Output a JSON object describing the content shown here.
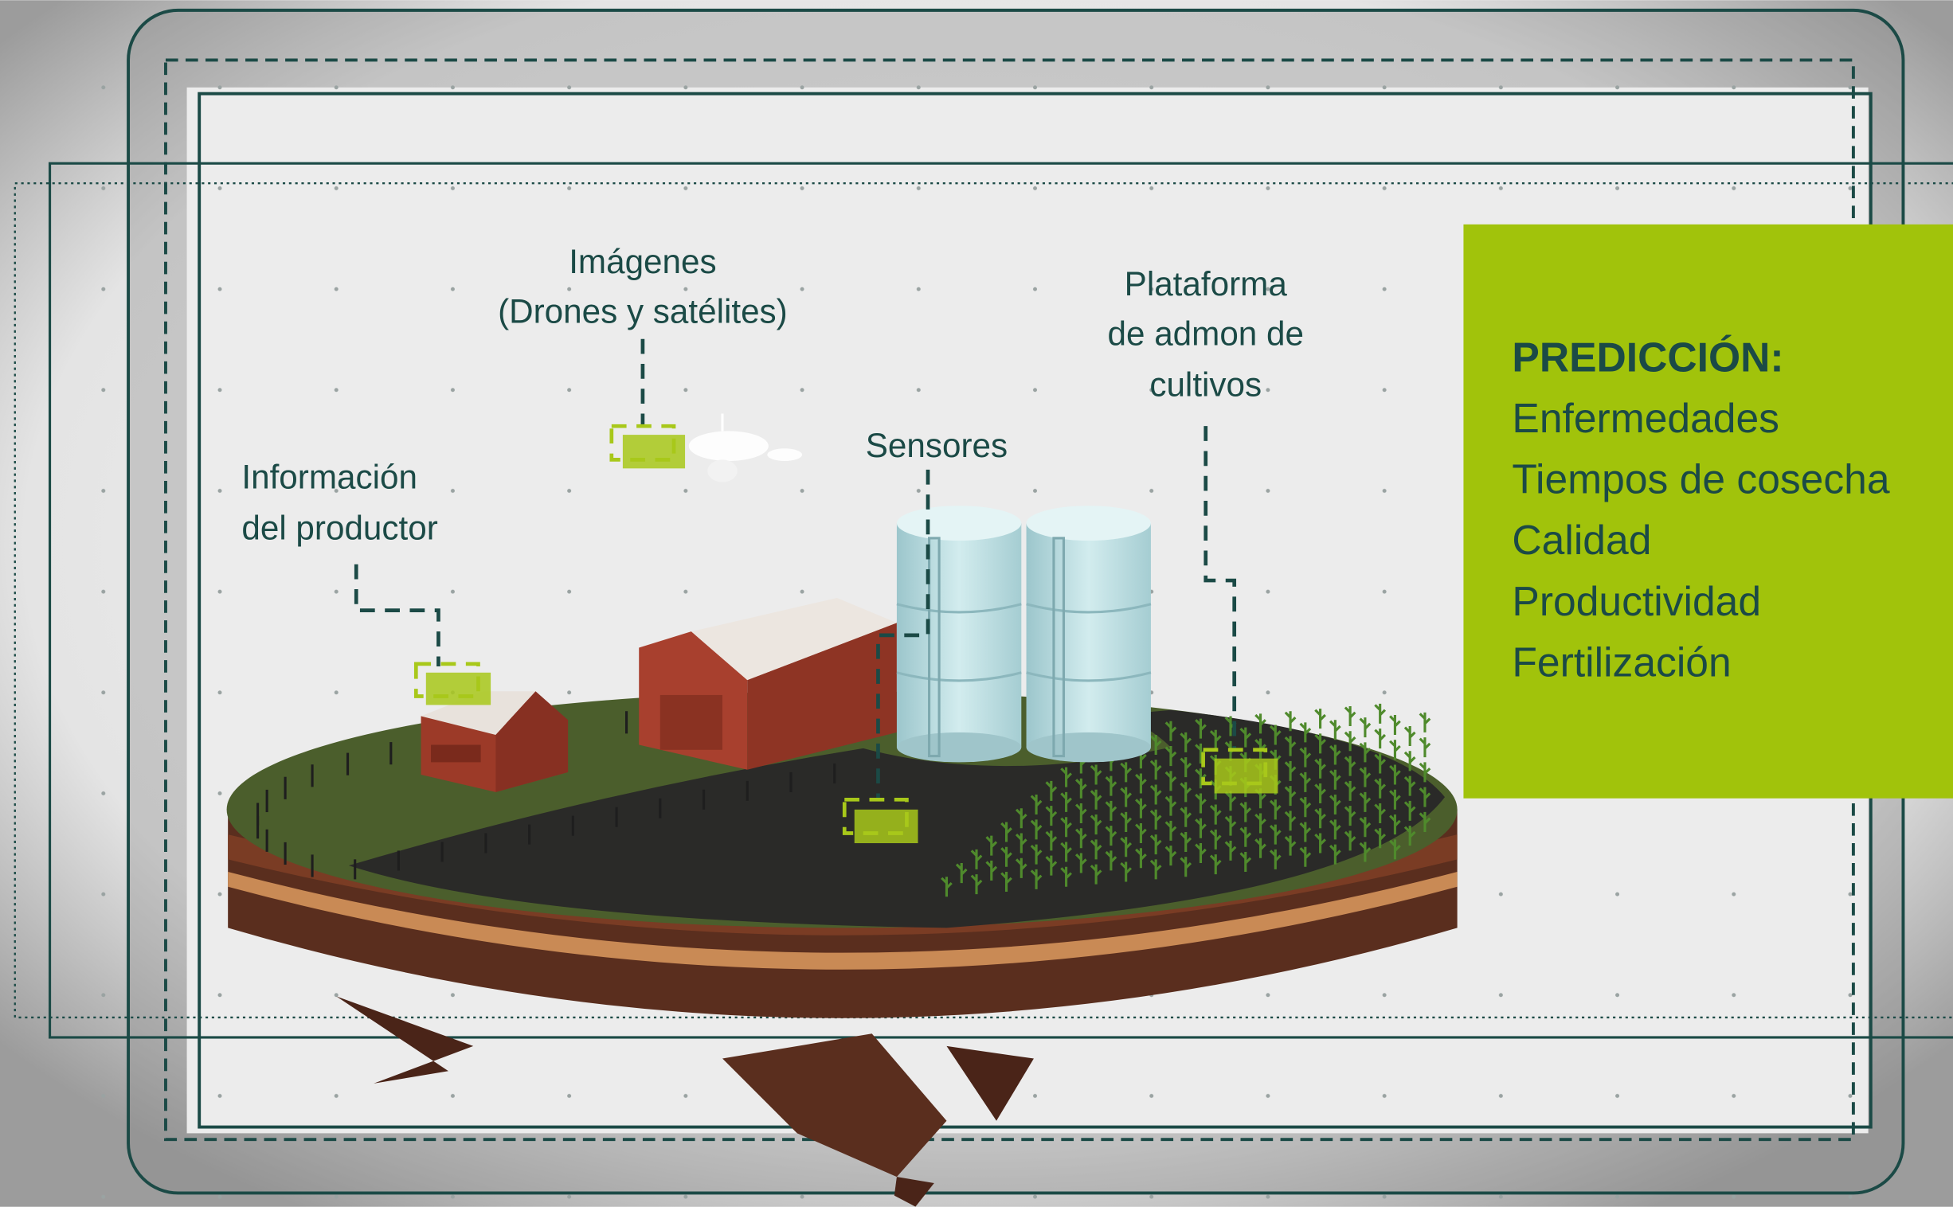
{
  "callouts": [
    {
      "lines": [
        "Información",
        "del productor"
      ]
    },
    {
      "lines": [
        "Imágenes",
        "(Drones y satélites)"
      ]
    },
    {
      "lines": [
        "Sensores"
      ]
    },
    {
      "lines": [
        "Plataforma",
        "de admon de",
        "cultivos"
      ]
    }
  ],
  "prediction": {
    "title": "PREDICCIÓN:",
    "items": [
      "Enfermedades",
      "Tiempos de cosecha",
      "Calidad",
      "Productividad",
      "Fertilización"
    ]
  }
}
